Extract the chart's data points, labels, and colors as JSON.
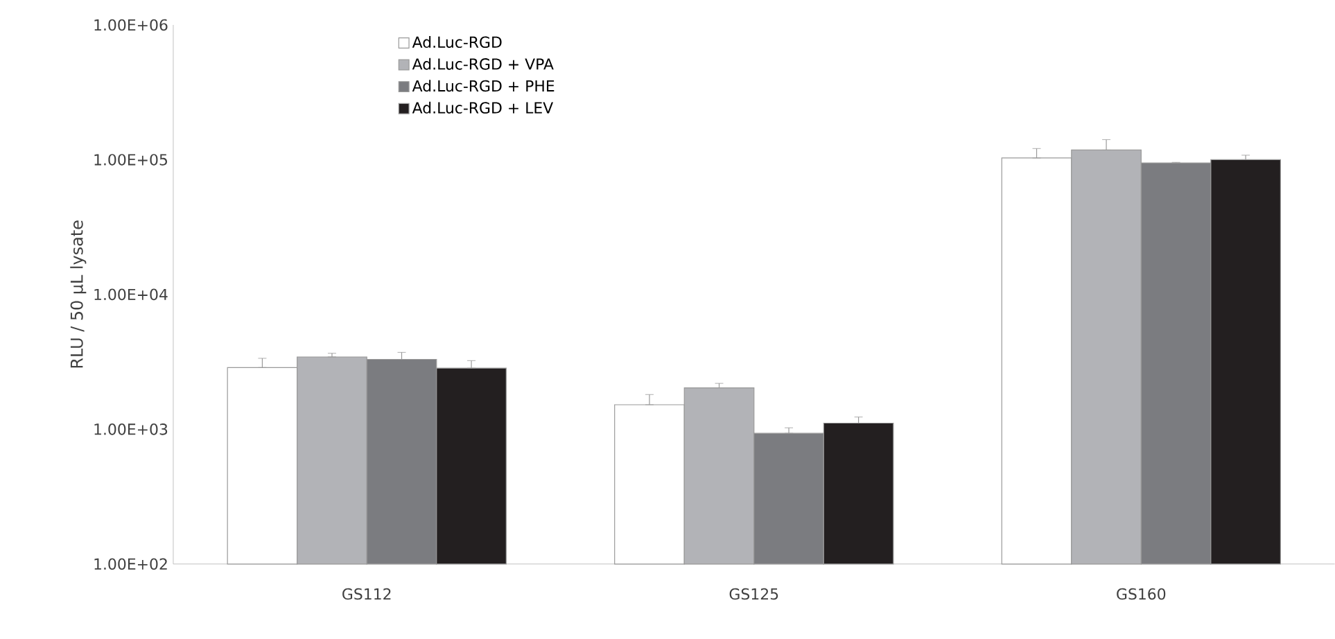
{
  "chart_data": {
    "type": "bar",
    "ylabel": "RLU / 50 µL lysate",
    "categories": [
      "GS112",
      "GS125",
      "GS160"
    ],
    "log": "y",
    "ylim": [
      100,
      1000000
    ],
    "yticks": [
      {
        "value": 100,
        "label": "1.00E+02"
      },
      {
        "value": 1000,
        "label": "1.00E+03"
      },
      {
        "value": 10000,
        "label": "1.00E+04"
      },
      {
        "value": 100000,
        "label": "1.00E+05"
      },
      {
        "value": 1000000,
        "label": "1.00E+06"
      }
    ],
    "legend": "top left",
    "grid": false,
    "series": [
      {
        "name": "Ad.Luc-RGD",
        "color": "#ffffff",
        "values": [
          2870,
          1520,
          103000
        ],
        "errors": [
          [
            2870,
            3360
          ],
          [
            1520,
            1810
          ],
          [
            103000,
            121000
          ]
        ]
      },
      {
        "name": "Ad.Luc-RGD + VPA",
        "color": "#b2b3b7",
        "values": [
          3440,
          2030,
          118000
        ],
        "errors": [
          [
            3440,
            3660
          ],
          [
            2030,
            2190
          ],
          [
            118000,
            141000
          ]
        ]
      },
      {
        "name": "Ad.Luc-RGD + PHE",
        "color": "#7b7c80",
        "values": [
          3300,
          933,
          94600
        ],
        "errors": [
          [
            3300,
            3720
          ],
          [
            933,
            1025
          ],
          [
            94600,
            95600
          ]
        ]
      },
      {
        "name": "Ad.Luc-RGD + LEV",
        "color": "#231f20",
        "values": [
          2840,
          1110,
          100000
        ],
        "errors": [
          [
            2840,
            3230
          ],
          [
            1110,
            1232
          ],
          [
            100000,
            108000
          ]
        ]
      }
    ]
  }
}
